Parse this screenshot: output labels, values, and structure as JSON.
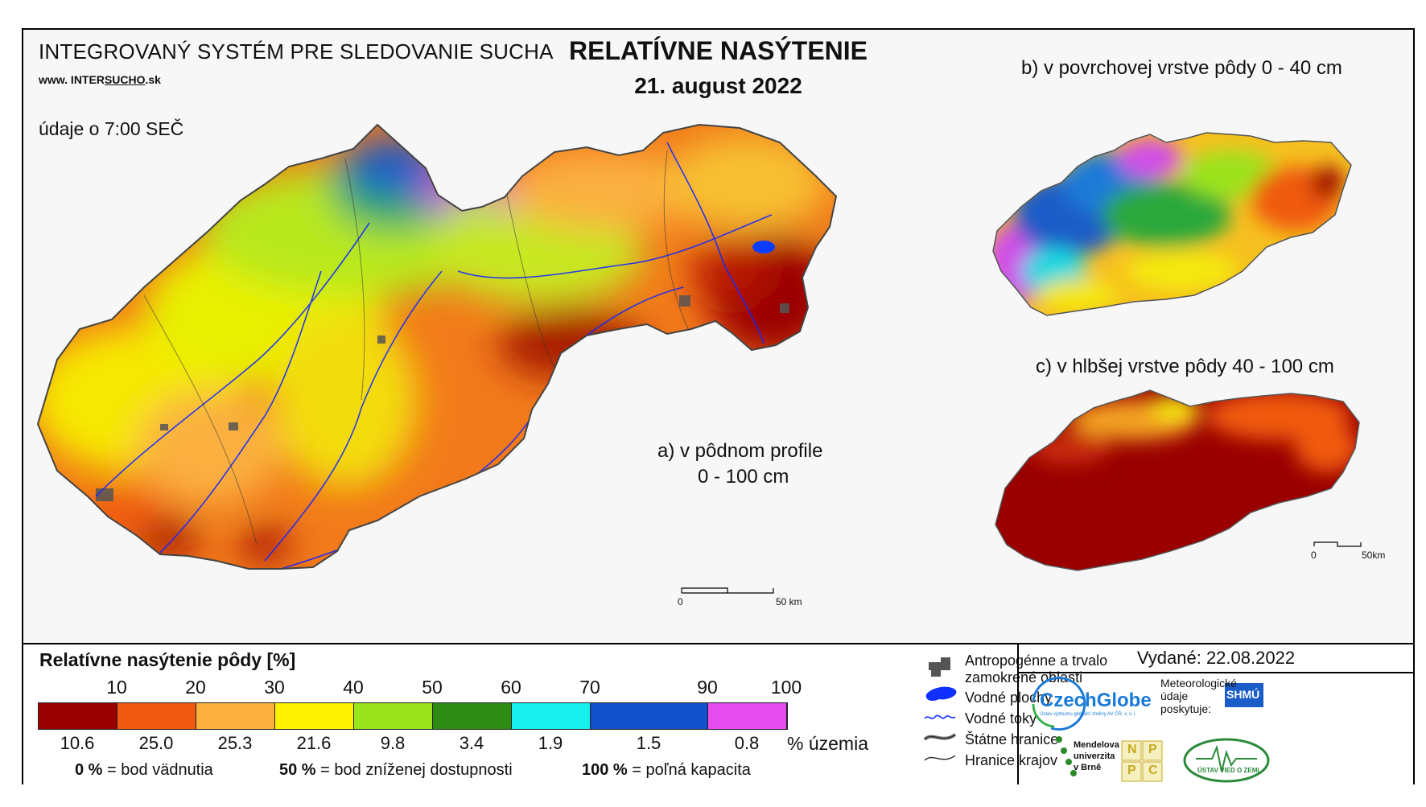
{
  "header": {
    "system_title": "INTEGROVANÝ SYSTÉM PRE SLEDOVANIE SUCHA",
    "url_prefix": "www. INTER",
    "url_brand": "SUCHO",
    "url_suffix": ".sk",
    "data_time": "údaje o 7:00 SEČ",
    "title": "RELATÍVNE NASÝTENIE",
    "date": "21. august 2022"
  },
  "maps": {
    "a": {
      "label_line1": "a) v pôdnom profile",
      "label_line2": "0 - 100 cm",
      "scale_zero": "0",
      "scale_label": "50 km"
    },
    "b": {
      "label": "b) v povrchovej vrstve pôdy 0 - 40 cm"
    },
    "c": {
      "label": "c) v hlbšej vrstve pôdy 40 - 100 cm",
      "scale_zero": "0",
      "scale_label": "50km"
    }
  },
  "legend": {
    "title": "Relatívne nasýtenie pôdy [%]",
    "ticks": [
      "10",
      "20",
      "30",
      "40",
      "50",
      "60",
      "70",
      "90",
      "100"
    ],
    "classes": [
      {
        "color": "#9a0000",
        "percent": "10.6"
      },
      {
        "color": "#f05a10",
        "percent": "25.0"
      },
      {
        "color": "#fbb040",
        "percent": "25.3"
      },
      {
        "color": "#fff200",
        "percent": "21.6"
      },
      {
        "color": "#9be31c",
        "percent": "9.8"
      },
      {
        "color": "#2e8b13",
        "percent": "3.4"
      },
      {
        "color": "#18f0f0",
        "percent": "1.9"
      },
      {
        "color": "#1050c8",
        "percent": "1.5"
      },
      {
        "color": "#e64cf0",
        "percent": "0.8"
      }
    ],
    "percent_unit": "% územia",
    "notes": [
      {
        "value": "0 %",
        "text": "= bod vädnutia"
      },
      {
        "value": "50 %",
        "text": "= bod zníženej dostupnosti"
      },
      {
        "value": "100 %",
        "text": "= poľná kapacita"
      }
    ]
  },
  "symbols": {
    "anthropogenic_line1": "Antropogénne a trvalo",
    "anthropogenic_line2": "zamokrené oblasti",
    "water_areas": "Vodné plochy",
    "water_streams": "Vodné toky",
    "state_border": "Štátne hranice",
    "region_border": "Hranice krajov"
  },
  "issued": "Vydané: 22.08.2022",
  "logos": {
    "czechglobe": "CzechGlobe",
    "czechglobe_sub": "Ústav výzkumu globální změny AV ČR, v. v. i.",
    "met_line1": "Meteorologické",
    "met_line2": "údaje",
    "met_line3": "poskytuje:",
    "shmu": "SHMÚ",
    "mendel_line1": "Mendelova",
    "mendel_line2": "univerzita",
    "mendel_line3": "v Brně",
    "nppc": [
      "N",
      "P",
      "P",
      "C"
    ],
    "uvz": "ÚSTAV VIED O ZEMI"
  }
}
